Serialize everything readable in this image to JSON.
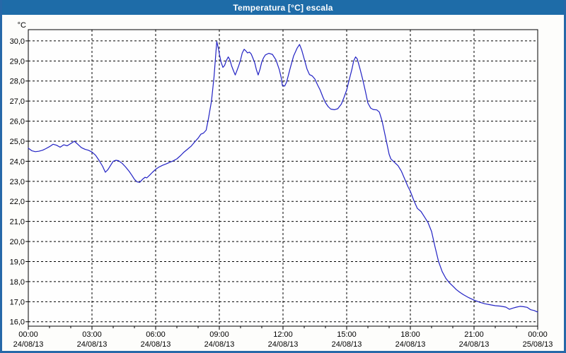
{
  "window": {
    "title": "Temperatura [°C] escala",
    "title_bar_color": "#1E6CA8",
    "frame_color": "#2668A8",
    "background_color": "#FDFDFB"
  },
  "chart_data": {
    "type": "line",
    "title": "Temperatura [°C] escala",
    "y_unit": "°C",
    "xlabel": "",
    "ylabel": "°C",
    "grid": "dashed-black",
    "legend_position": "none",
    "plot_background": "#FEFEFE",
    "line_color": "#2222C4",
    "xlim_hours": [
      0,
      24
    ],
    "ylim": [
      15.78,
      30.56
    ],
    "y_ticks": [
      {
        "value": 30,
        "label": "30,0"
      },
      {
        "value": 29,
        "label": "29,0"
      },
      {
        "value": 28,
        "label": "28,0"
      },
      {
        "value": 27,
        "label": "27,0"
      },
      {
        "value": 26,
        "label": "26,0"
      },
      {
        "value": 25,
        "label": "25,0"
      },
      {
        "value": 24,
        "label": "24,0"
      },
      {
        "value": 23,
        "label": "23,0"
      },
      {
        "value": 22,
        "label": "22,0"
      },
      {
        "value": 21,
        "label": "21,0"
      },
      {
        "value": 20,
        "label": "20,0"
      },
      {
        "value": 19,
        "label": "19,0"
      },
      {
        "value": 18,
        "label": "18,0"
      },
      {
        "value": 17,
        "label": "17,0"
      },
      {
        "value": 16,
        "label": "16,0"
      }
    ],
    "x_ticks": [
      {
        "hour": 0,
        "time": "00:00",
        "date": "24/08/13"
      },
      {
        "hour": 3,
        "time": "03:00",
        "date": "24/08/13"
      },
      {
        "hour": 6,
        "time": "06:00",
        "date": "24/08/13"
      },
      {
        "hour": 9,
        "time": "09:00",
        "date": "24/08/13"
      },
      {
        "hour": 12,
        "time": "12:00",
        "date": "24/08/13"
      },
      {
        "hour": 15,
        "time": "15:00",
        "date": "24/08/13"
      },
      {
        "hour": 18,
        "time": "18:00",
        "date": "24/08/13"
      },
      {
        "hour": 21,
        "time": "21:00",
        "date": "24/08/13"
      },
      {
        "hour": 24,
        "time": "00:00",
        "date": "25/08/13"
      }
    ],
    "x_minor_tick_every_hours": 1,
    "series": [
      {
        "name": "Temperatura",
        "color": "#2222C4",
        "points": [
          [
            0,
            24.65
          ],
          [
            0.17,
            24.52
          ],
          [
            0.33,
            24.48
          ],
          [
            0.5,
            24.5
          ],
          [
            0.67,
            24.55
          ],
          [
            0.83,
            24.63
          ],
          [
            1,
            24.73
          ],
          [
            1.17,
            24.85
          ],
          [
            1.33,
            24.8
          ],
          [
            1.5,
            24.7
          ],
          [
            1.67,
            24.82
          ],
          [
            1.83,
            24.77
          ],
          [
            2,
            24.88
          ],
          [
            2.17,
            25.0
          ],
          [
            2.33,
            24.85
          ],
          [
            2.5,
            24.68
          ],
          [
            2.67,
            24.6
          ],
          [
            2.83,
            24.55
          ],
          [
            3,
            24.46
          ],
          [
            3.17,
            24.3
          ],
          [
            3.33,
            24.05
          ],
          [
            3.5,
            23.75
          ],
          [
            3.63,
            23.45
          ],
          [
            3.75,
            23.58
          ],
          [
            3.88,
            23.8
          ],
          [
            4,
            24.0
          ],
          [
            4.13,
            24.05
          ],
          [
            4.25,
            24.03
          ],
          [
            4.42,
            23.9
          ],
          [
            4.58,
            23.72
          ],
          [
            4.75,
            23.5
          ],
          [
            4.88,
            23.3
          ],
          [
            5,
            23.1
          ],
          [
            5.13,
            22.97
          ],
          [
            5.25,
            22.95
          ],
          [
            5.38,
            23.1
          ],
          [
            5.5,
            23.2
          ],
          [
            5.58,
            23.17
          ],
          [
            5.71,
            23.3
          ],
          [
            5.85,
            23.45
          ],
          [
            6,
            23.6
          ],
          [
            6.17,
            23.72
          ],
          [
            6.33,
            23.8
          ],
          [
            6.5,
            23.87
          ],
          [
            6.67,
            23.95
          ],
          [
            6.83,
            24.02
          ],
          [
            7,
            24.12
          ],
          [
            7.17,
            24.28
          ],
          [
            7.33,
            24.45
          ],
          [
            7.5,
            24.6
          ],
          [
            7.67,
            24.75
          ],
          [
            7.83,
            24.95
          ],
          [
            8,
            25.15
          ],
          [
            8.13,
            25.35
          ],
          [
            8.25,
            25.4
          ],
          [
            8.38,
            25.55
          ],
          [
            8.5,
            26.2
          ],
          [
            8.63,
            27.0
          ],
          [
            8.75,
            28.2
          ],
          [
            8.83,
            29.3
          ],
          [
            8.88,
            29.97
          ],
          [
            8.96,
            29.6
          ],
          [
            9,
            29.35
          ],
          [
            9.08,
            28.95
          ],
          [
            9.17,
            28.68
          ],
          [
            9.25,
            28.78
          ],
          [
            9.33,
            29.02
          ],
          [
            9.42,
            29.2
          ],
          [
            9.5,
            29.05
          ],
          [
            9.58,
            28.75
          ],
          [
            9.67,
            28.5
          ],
          [
            9.75,
            28.3
          ],
          [
            9.83,
            28.52
          ],
          [
            9.92,
            28.78
          ],
          [
            10,
            29.05
          ],
          [
            10.08,
            29.4
          ],
          [
            10.17,
            29.58
          ],
          [
            10.25,
            29.5
          ],
          [
            10.33,
            29.4
          ],
          [
            10.42,
            29.44
          ],
          [
            10.5,
            29.35
          ],
          [
            10.58,
            29.15
          ],
          [
            10.67,
            28.9
          ],
          [
            10.75,
            28.55
          ],
          [
            10.83,
            28.3
          ],
          [
            10.92,
            28.6
          ],
          [
            11,
            28.95
          ],
          [
            11.08,
            29.15
          ],
          [
            11.17,
            29.3
          ],
          [
            11.33,
            29.38
          ],
          [
            11.5,
            29.33
          ],
          [
            11.67,
            29.05
          ],
          [
            11.83,
            28.55
          ],
          [
            11.93,
            28.1
          ],
          [
            11.97,
            27.78
          ],
          [
            12.08,
            27.75
          ],
          [
            12.17,
            27.95
          ],
          [
            12.33,
            28.6
          ],
          [
            12.5,
            29.25
          ],
          [
            12.67,
            29.65
          ],
          [
            12.78,
            29.82
          ],
          [
            12.88,
            29.55
          ],
          [
            13,
            29.1
          ],
          [
            13.13,
            28.6
          ],
          [
            13.25,
            28.32
          ],
          [
            13.38,
            28.25
          ],
          [
            13.5,
            28.1
          ],
          [
            13.63,
            27.8
          ],
          [
            13.75,
            27.55
          ],
          [
            13.88,
            27.2
          ],
          [
            14,
            26.92
          ],
          [
            14.13,
            26.72
          ],
          [
            14.25,
            26.6
          ],
          [
            14.42,
            26.57
          ],
          [
            14.58,
            26.62
          ],
          [
            14.75,
            26.85
          ],
          [
            14.88,
            27.2
          ],
          [
            15,
            27.55
          ],
          [
            15.13,
            28.1
          ],
          [
            15.25,
            28.6
          ],
          [
            15.33,
            29.0
          ],
          [
            15.42,
            29.2
          ],
          [
            15.5,
            29.1
          ],
          [
            15.63,
            28.6
          ],
          [
            15.75,
            28.1
          ],
          [
            15.88,
            27.5
          ],
          [
            16,
            26.9
          ],
          [
            16.13,
            26.65
          ],
          [
            16.25,
            26.58
          ],
          [
            16.42,
            26.56
          ],
          [
            16.54,
            26.45
          ],
          [
            16.67,
            26.0
          ],
          [
            16.79,
            25.4
          ],
          [
            16.92,
            24.75
          ],
          [
            17,
            24.35
          ],
          [
            17.08,
            24.12
          ],
          [
            17.25,
            23.95
          ],
          [
            17.42,
            23.78
          ],
          [
            17.58,
            23.5
          ],
          [
            17.75,
            23.08
          ],
          [
            17.88,
            22.75
          ],
          [
            18,
            22.5
          ],
          [
            18.17,
            22.03
          ],
          [
            18.33,
            21.65
          ],
          [
            18.5,
            21.5
          ],
          [
            18.67,
            21.22
          ],
          [
            18.83,
            20.95
          ],
          [
            19,
            20.5
          ],
          [
            19.17,
            19.7
          ],
          [
            19.33,
            19.0
          ],
          [
            19.5,
            18.5
          ],
          [
            19.67,
            18.17
          ],
          [
            19.83,
            17.95
          ],
          [
            20,
            17.78
          ],
          [
            20.17,
            17.6
          ],
          [
            20.33,
            17.47
          ],
          [
            20.5,
            17.35
          ],
          [
            20.75,
            17.2
          ],
          [
            21,
            17.08
          ],
          [
            21.25,
            16.98
          ],
          [
            21.5,
            16.9
          ],
          [
            21.75,
            16.85
          ],
          [
            22,
            16.8
          ],
          [
            22.25,
            16.78
          ],
          [
            22.5,
            16.73
          ],
          [
            22.67,
            16.62
          ],
          [
            22.83,
            16.68
          ],
          [
            23,
            16.73
          ],
          [
            23.17,
            16.77
          ],
          [
            23.33,
            16.75
          ],
          [
            23.5,
            16.72
          ],
          [
            23.67,
            16.6
          ],
          [
            23.83,
            16.56
          ],
          [
            24,
            16.48
          ]
        ]
      }
    ]
  }
}
